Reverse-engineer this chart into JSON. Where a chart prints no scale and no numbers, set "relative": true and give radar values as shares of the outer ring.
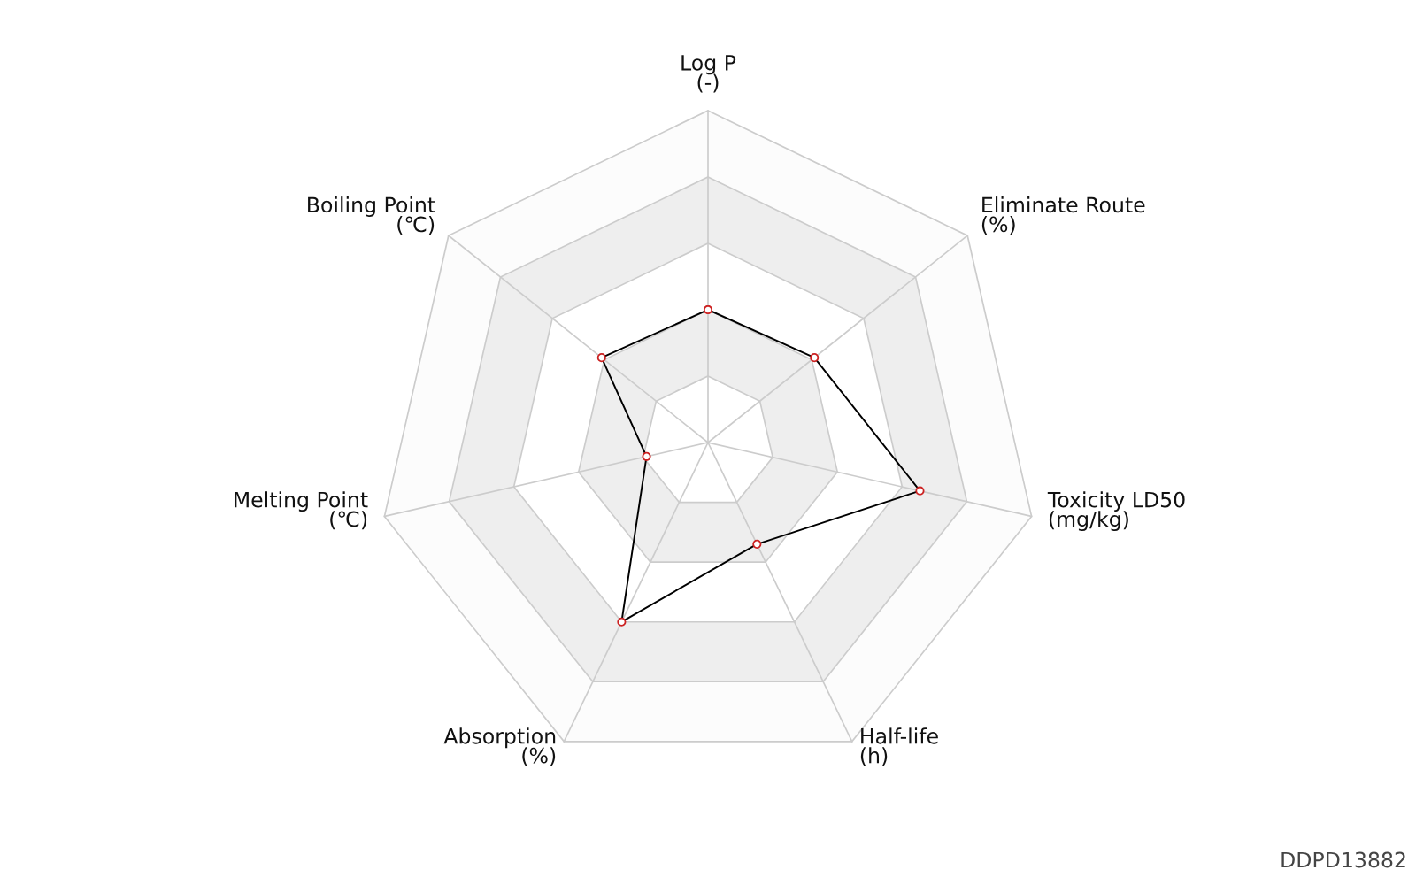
{
  "chart_data": {
    "type": "radar",
    "relative": true,
    "categories": [
      "Log P\n(-)",
      "Eliminate Route\n(%)",
      "Toxicity LD50\n(mg/kg)",
      "Half-life\n(h)",
      "Absorption\n(%)",
      "Melting Point\n(℃)",
      "Boiling Point\n(℃)"
    ],
    "series": [
      {
        "color": "#000000",
        "values": [
          0.4,
          0.41,
          0.655,
          0.34,
          0.6,
          0.19,
          0.41
        ]
      }
    ],
    "marker": "circle",
    "line_style": "solid",
    "grid": true,
    "legend": false,
    "annotations": [
      "DDPD13882"
    ]
  }
}
